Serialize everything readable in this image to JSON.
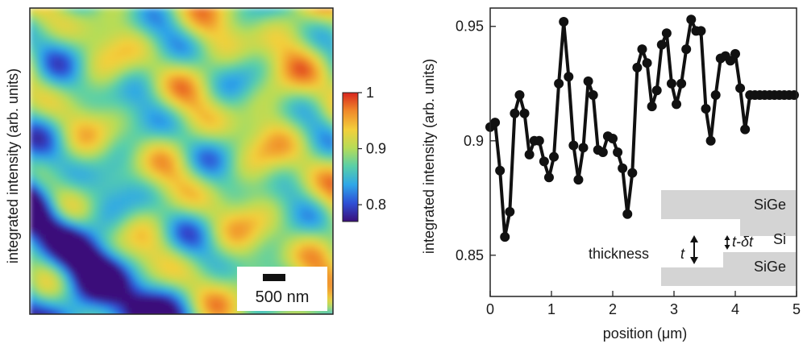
{
  "chart_data": [
    {
      "type": "heatmap",
      "ylabel": "integrated intensity (arb. units)",
      "colorbar": {
        "min": 0.77,
        "max": 1.0,
        "ticks": [
          {
            "value": 0.8,
            "label": "0.8"
          },
          {
            "value": 0.9,
            "label": "0.9"
          },
          {
            "value": 1.0,
            "label": "1"
          }
        ],
        "colors": [
          "#3a0f7a",
          "#2e4fd6",
          "#2fa7e8",
          "#59cfa8",
          "#b6dc57",
          "#f3cf3b",
          "#f08a2a",
          "#d8251e"
        ]
      },
      "scale_bar": {
        "label": "500 nm"
      },
      "grid": false
    },
    {
      "type": "line",
      "xlabel": "position (μm)",
      "ylabel": "integrated intensity (arb. units)",
      "xlim": [
        0,
        5
      ],
      "ylim": [
        0.832,
        0.958
      ],
      "x_ticks": [
        0,
        1,
        2,
        3,
        4,
        5
      ],
      "y_ticks": [
        0.85,
        0.9,
        0.95
      ],
      "grid": false,
      "series": [
        {
          "color": "#111111",
          "x": [
            0.0,
            0.08,
            0.16,
            0.24,
            0.32,
            0.4,
            0.48,
            0.56,
            0.64,
            0.72,
            0.8,
            0.88,
            0.96,
            1.04,
            1.12,
            1.2,
            1.28,
            1.36,
            1.44,
            1.52,
            1.6,
            1.68,
            1.76,
            1.84,
            1.92,
            2.0,
            2.08,
            2.16,
            2.24,
            2.32,
            2.4,
            2.48,
            2.56,
            2.64,
            2.72,
            2.8,
            2.88,
            2.96,
            3.04,
            3.12,
            3.2,
            3.28,
            3.36,
            3.44,
            3.52,
            3.6,
            3.68,
            3.76,
            3.84,
            3.92,
            4.0,
            4.08,
            4.16,
            4.24,
            4.32,
            4.4,
            4.48,
            4.56,
            4.64,
            4.72,
            4.8,
            4.88,
            4.96
          ],
          "y": [
            0.906,
            0.908,
            0.887,
            0.858,
            0.869,
            0.912,
            0.92,
            0.912,
            0.894,
            0.9,
            0.9,
            0.891,
            0.884,
            0.893,
            0.925,
            0.952,
            0.928,
            0.898,
            0.883,
            0.897,
            0.926,
            0.92,
            0.896,
            0.895,
            0.902,
            0.901,
            0.895,
            0.888,
            0.868,
            0.886,
            0.932,
            0.94,
            0.934,
            0.915,
            0.922,
            0.942,
            0.947,
            0.925,
            0.916,
            0.925,
            0.94,
            0.953,
            0.948,
            0.948,
            0.914,
            0.9,
            0.92,
            0.936,
            0.937,
            0.935,
            0.938,
            0.923,
            0.905,
            0.92,
            0.92,
            0.92,
            0.92,
            0.92,
            0.92,
            0.92,
            0.92,
            0.92,
            0.92
          ]
        }
      ],
      "inset": {
        "labels": [
          "SiGe",
          "Si",
          "SiGe"
        ],
        "thickness_label": "thickness",
        "t_label": "t",
        "delta_label": "t-δt"
      }
    }
  ]
}
